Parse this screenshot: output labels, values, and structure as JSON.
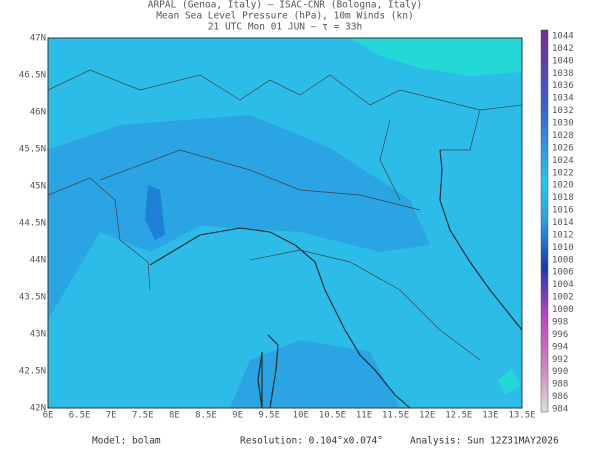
{
  "header": {
    "lines": [
      "ARPAL (Genoa, Italy)  —  ISAC-CNR (Bologna, Italy)",
      "Mean Sea Level Pressure (hPa), 10m Winds (kn)",
      "21 UTC Mon 01 JUN  —  τ = 33h"
    ]
  },
  "map": {
    "x_labels": [
      "6E",
      "6.5E",
      "7E",
      "7.5E",
      "8E",
      "8.5E",
      "9E",
      "9.5E",
      "10E",
      "10.5E",
      "11E",
      "11.5E",
      "12E",
      "12.5E",
      "13E",
      "13.5E"
    ],
    "y_labels": [
      "47N",
      "46.5N",
      "46N",
      "45.5N",
      "45N",
      "44.5N",
      "44N",
      "43.5N",
      "43N",
      "42.5N",
      "42N"
    ]
  },
  "colorbar": {
    "labels": [
      "1044",
      "1042",
      "1040",
      "1038",
      "1036",
      "1034",
      "1032",
      "1030",
      "1028",
      "1026",
      "1024",
      "1022",
      "1020",
      "1018",
      "1016",
      "1014",
      "1012",
      "1010",
      "1008",
      "1006",
      "1004",
      "1002",
      "1000",
      "998",
      "996",
      "994",
      "992",
      "990",
      "988",
      "986",
      "984"
    ]
  },
  "footer": {
    "model": "Model: bolam",
    "resolution": "Resolution: 0.104°x0.074°",
    "analysis": "Analysis: Sun 12Z31MAY2026"
  }
}
